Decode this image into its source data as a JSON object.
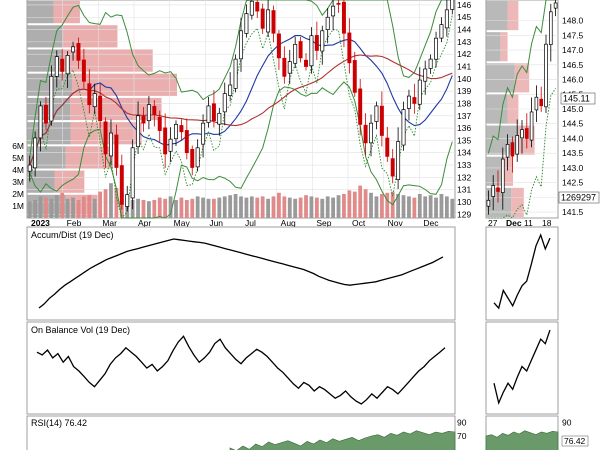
{
  "chart_data": [
    {
      "type": "candlestick",
      "panel": "price-main",
      "title": "",
      "y_ticks": [
        129,
        130,
        131,
        132,
        133,
        134,
        135,
        136,
        137,
        138,
        139,
        140,
        141,
        142,
        143,
        144,
        145,
        146
      ],
      "ylim": [
        128.7,
        146.4
      ],
      "volume_ticks": [
        "1M",
        "2M",
        "3M",
        "4M",
        "5M",
        "6M"
      ],
      "x_labels": [
        "2023",
        "Feb",
        "Mar",
        "Apr",
        "May",
        "Jun",
        "Jul",
        "Aug",
        "Sep",
        "Oct",
        "Nov",
        "Dec"
      ],
      "close": [
        133.0,
        135.2,
        137.8,
        136.4,
        140.2,
        141.8,
        140.6,
        141.9,
        142.6,
        141.5,
        139.8,
        137.9,
        138.8,
        136.6,
        133.9,
        135.6,
        132.8,
        129.8,
        130.6,
        134.4,
        137.0,
        136.4,
        137.9,
        137.1,
        135.8,
        133.9,
        135.1,
        136.3,
        135.7,
        134.0,
        132.8,
        134.4,
        136.4,
        137.8,
        136.6,
        137.2,
        138.8,
        139.5,
        141.6,
        143.9,
        145.3,
        146.3,
        145.5,
        144.1,
        145.6,
        143.7,
        141.7,
        140.2,
        141.4,
        142.8,
        141.7,
        141.0,
        143.5,
        142.3,
        143.9,
        145.0,
        145.9,
        146.1,
        143.7,
        141.3,
        138.9,
        136.3,
        134.8,
        136.4,
        137.8,
        135.4,
        133.7,
        132.1,
        134.9,
        137.5,
        138.6,
        138.0,
        139.9,
        140.8,
        141.6,
        143.3,
        144.4,
        145.6,
        146.6
      ],
      "volume_M": [
        1.4,
        1.5,
        1.8,
        1.7,
        1.6,
        1.9,
        2.1,
        1.6,
        1.7,
        1.5,
        1.8,
        1.9,
        1.6,
        2.2,
        2.4,
        2.9,
        2.5,
        2.2,
        1.7,
        1.5,
        1.6,
        1.5,
        1.4,
        1.5,
        1.7,
        1.6,
        1.8,
        1.5,
        1.7,
        1.5,
        1.6,
        1.8,
        1.7,
        1.6,
        1.6,
        1.7,
        1.8,
        1.9,
        2.0,
        1.8,
        1.7,
        1.8,
        1.7,
        1.8,
        1.6,
        1.8,
        2.1,
        1.8,
        1.7,
        1.6,
        1.7,
        1.9,
        1.8,
        1.7,
        1.6,
        1.8,
        1.7,
        1.9,
        2.0,
        2.3,
        2.2,
        2.7,
        2.4,
        2.1,
        1.8,
        2.0,
        2.1,
        2.2,
        2.0,
        1.9,
        1.8,
        1.7,
        2.0,
        1.8,
        1.9,
        1.7,
        2.0,
        1.8,
        1.6
      ],
      "volume_profile_M": [
        3.2,
        2.6,
        3.9,
        5.2,
        6.1,
        6.8,
        5.7,
        4.1,
        2.4
      ],
      "volume_profile_up_fraction": [
        0.55,
        0.48,
        0.45,
        0.38,
        0.32,
        0.3,
        0.28,
        0.4,
        0.5
      ],
      "overlays": [
        "upper-bollinger",
        "lower-bollinger",
        "sma-50",
        "sma-200",
        "parabolic-sar"
      ],
      "colors": {
        "up": "#000000",
        "down": "#cc0000",
        "volume_profile_up": "#a0a0a0",
        "volume_profile_down": "#e59a9a",
        "bollinger": "#3c8c3c",
        "sma50": "#1e3aa0",
        "sma200": "#b03030",
        "sar": "#2a8a2a"
      }
    },
    {
      "type": "candlestick",
      "panel": "price-zoom",
      "y_ticks": [
        "141.5",
        "142.0",
        "142.5",
        "143.0",
        "143.5",
        "144.0",
        "144.5",
        "145.0",
        "145.5",
        "146.0",
        "146.5",
        "147.0",
        "147.5",
        "148.0"
      ],
      "ylim": [
        141.3,
        148.7
      ],
      "x_labels": [
        "27",
        "Dec",
        "11",
        "18"
      ],
      "close": [
        141.9,
        142.4,
        142.2,
        143.3,
        143.8,
        143.4,
        144.1,
        144.3,
        144.0,
        144.9,
        145.4,
        145.11,
        147.2,
        148.3,
        148.6
      ],
      "last_price": "145.11",
      "volume_readout": "1269297"
    },
    {
      "type": "line",
      "panel": "accum-dist",
      "label": "Accum/Dist (19 Dec)",
      "values": [
        0.0,
        0.06,
        0.14,
        0.2,
        0.27,
        0.33,
        0.38,
        0.43,
        0.48,
        0.53,
        0.58,
        0.62,
        0.66,
        0.7,
        0.73,
        0.76,
        0.79,
        0.82,
        0.84,
        0.86,
        0.88,
        0.9,
        0.92,
        0.94,
        0.96,
        0.98,
        1.0,
        0.99,
        0.98,
        0.97,
        0.96,
        0.95,
        0.94,
        0.92,
        0.9,
        0.88,
        0.86,
        0.84,
        0.82,
        0.8,
        0.78,
        0.76,
        0.74,
        0.72,
        0.7,
        0.68,
        0.66,
        0.64,
        0.62,
        0.6,
        0.58,
        0.56,
        0.53,
        0.5,
        0.46,
        0.43,
        0.4,
        0.38,
        0.36,
        0.34,
        0.33,
        0.34,
        0.35,
        0.36,
        0.37,
        0.38,
        0.4,
        0.42,
        0.44,
        0.46,
        0.48,
        0.51,
        0.54,
        0.57,
        0.6,
        0.63,
        0.66,
        0.7,
        0.74
      ]
    },
    {
      "type": "line",
      "panel": "accum-dist-zoom",
      "values": [
        0.12,
        0.05,
        0.28,
        0.18,
        0.08,
        0.22,
        0.34,
        0.4,
        0.62,
        0.86,
        1.0,
        0.82,
        0.96
      ]
    },
    {
      "type": "line",
      "panel": "on-balance-volume",
      "label": "On Balance Vol (19 Dec)",
      "values": [
        0.72,
        0.68,
        0.75,
        0.64,
        0.7,
        0.58,
        0.66,
        0.52,
        0.46,
        0.38,
        0.3,
        0.24,
        0.33,
        0.42,
        0.55,
        0.64,
        0.7,
        0.78,
        0.72,
        0.66,
        0.58,
        0.5,
        0.55,
        0.46,
        0.52,
        0.6,
        0.74,
        0.86,
        0.94,
        0.8,
        0.68,
        0.58,
        0.64,
        0.72,
        0.84,
        0.9,
        0.78,
        0.7,
        0.62,
        0.56,
        0.64,
        0.7,
        0.76,
        0.72,
        0.66,
        0.58,
        0.5,
        0.44,
        0.36,
        0.28,
        0.22,
        0.3,
        0.26,
        0.18,
        0.24,
        0.2,
        0.14,
        0.08,
        0.12,
        0.18,
        0.1,
        0.04,
        0.0,
        0.06,
        0.14,
        0.08,
        0.16,
        0.24,
        0.2,
        0.14,
        0.22,
        0.3,
        0.38,
        0.46,
        0.52,
        0.6,
        0.66,
        0.72,
        0.78
      ]
    },
    {
      "type": "line",
      "panel": "obv-zoom",
      "values": [
        0.3,
        0.04,
        0.18,
        0.3,
        0.22,
        0.38,
        0.52,
        0.46,
        0.6,
        0.74,
        0.88,
        0.82,
        1.0
      ]
    },
    {
      "type": "area",
      "panel": "rsi",
      "label": "RSI(14) 76.42",
      "y_ticks": [
        70,
        90
      ],
      "last_value": "76.42",
      "values": [
        52,
        48,
        55,
        50,
        58,
        54,
        61,
        57,
        60,
        63,
        59,
        55,
        62,
        58,
        64,
        60,
        66,
        62,
        65,
        68,
        63,
        67,
        70,
        72,
        68,
        74,
        71,
        76,
        73,
        78,
        75,
        72,
        76,
        74,
        77,
        76
      ]
    }
  ]
}
